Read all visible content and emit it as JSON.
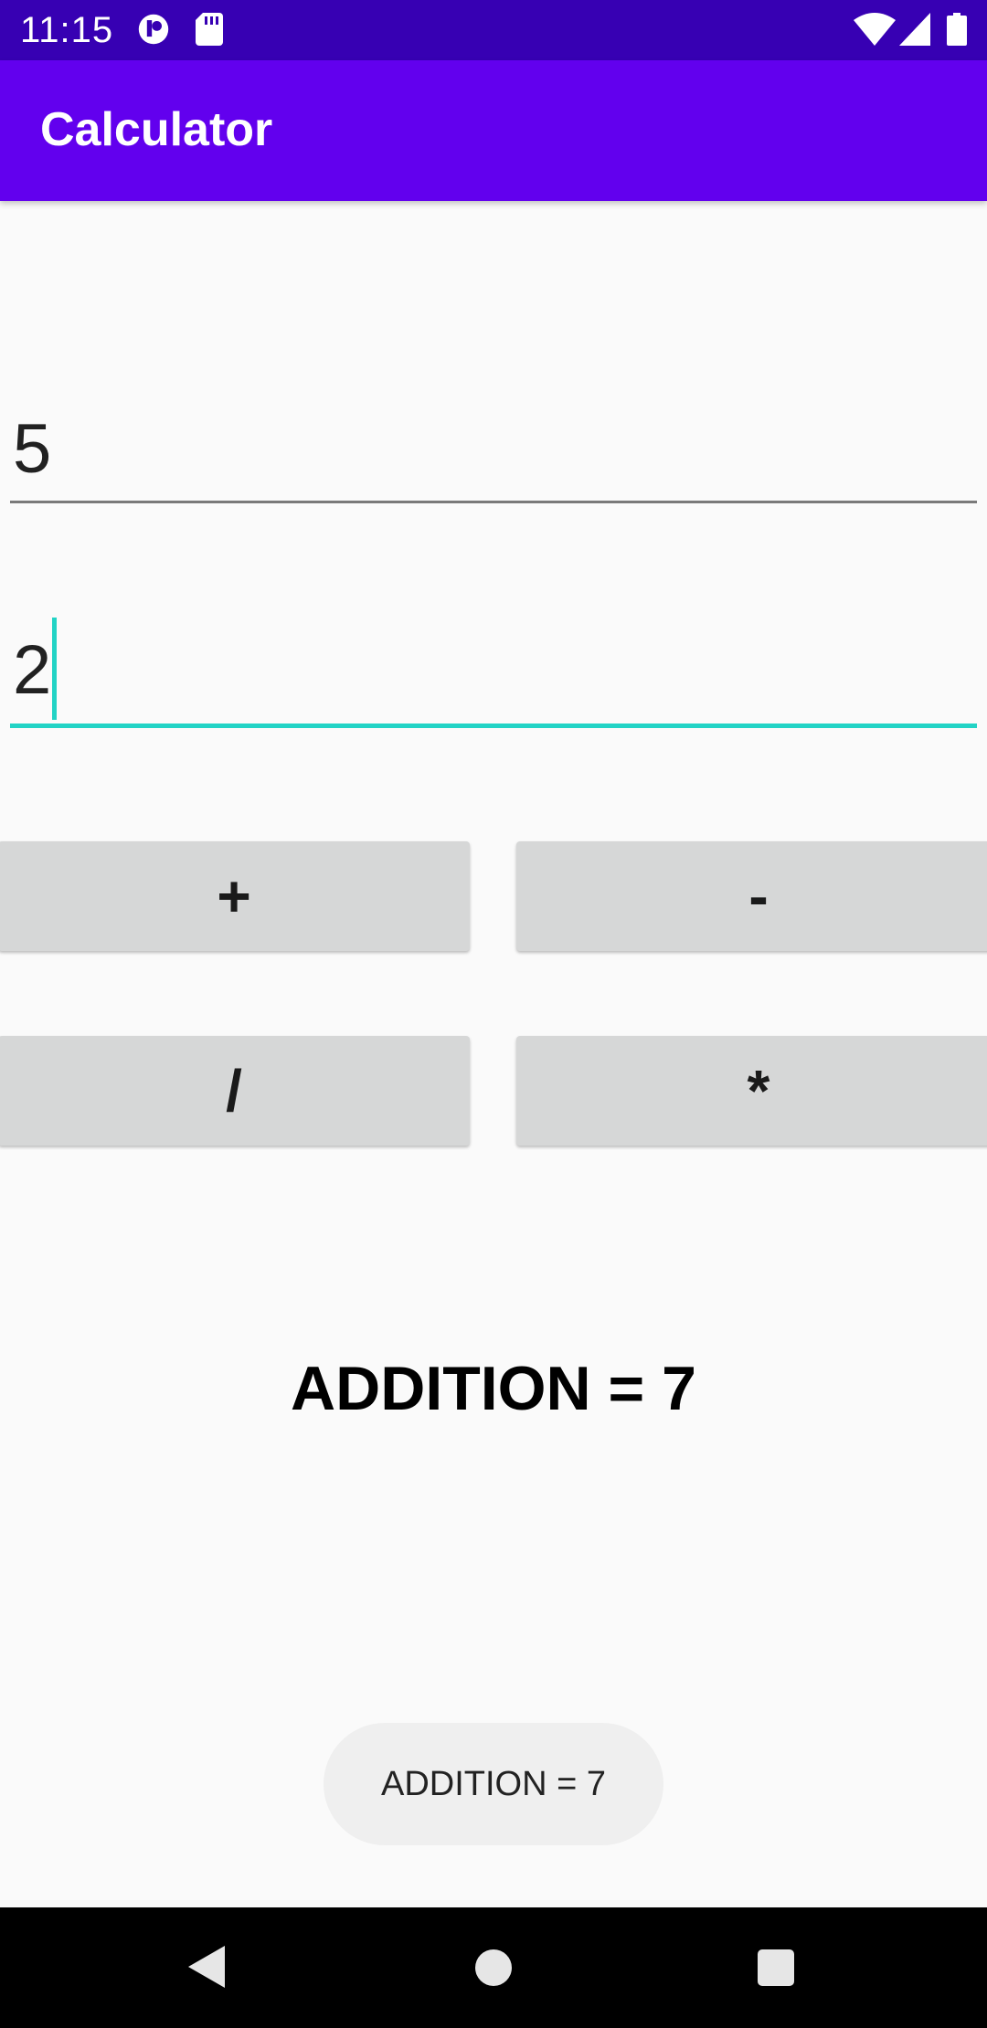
{
  "status_bar": {
    "time": "11:15",
    "icons": [
      "notification-app-icon",
      "sd-card-icon",
      "wifi-icon",
      "cellular-signal-icon",
      "battery-icon"
    ]
  },
  "app_bar": {
    "title": "Calculator"
  },
  "inputs": {
    "first_number": "5",
    "second_number": "2"
  },
  "buttons": {
    "add": "+",
    "subtract": "-",
    "divide": "/",
    "multiply": "*"
  },
  "result": {
    "text": "ADDITION = 7"
  },
  "toast": {
    "text": "ADDITION = 7"
  },
  "nav_bar": {
    "icons": [
      "back-icon",
      "home-icon",
      "recents-icon"
    ]
  },
  "colors": {
    "status_bar": "#3700b3",
    "app_bar": "#6200ee",
    "accent": "#22d3c5",
    "button": "#d6d7d7",
    "background": "#fafafa"
  }
}
